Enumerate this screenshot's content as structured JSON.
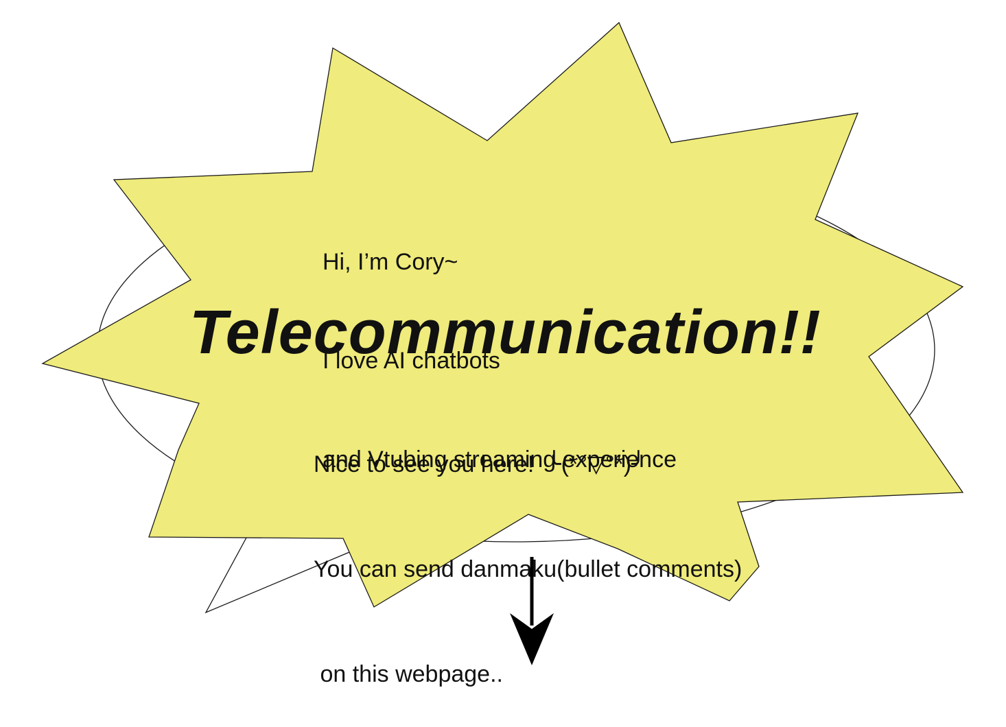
{
  "intro": {
    "lines": [
      "Hi, I’m Cory~",
      "I love AI chatbots",
      "and Vtubing streaming experience"
    ]
  },
  "headline": "Telecommunication!!",
  "outro": {
    "lines": [
      "Nice to see you here!  ╰(*°▽°*)╯",
      "You can send danmaku(bullet comments)",
      " on this webpage.."
    ]
  },
  "scroll_hint": {
    "icon": "down-arrow-icon"
  },
  "colors": {
    "burst_fill": "#EFEB7C",
    "outline": "#1A1A1A",
    "background": "#FFFFFF",
    "text": "#111111"
  }
}
